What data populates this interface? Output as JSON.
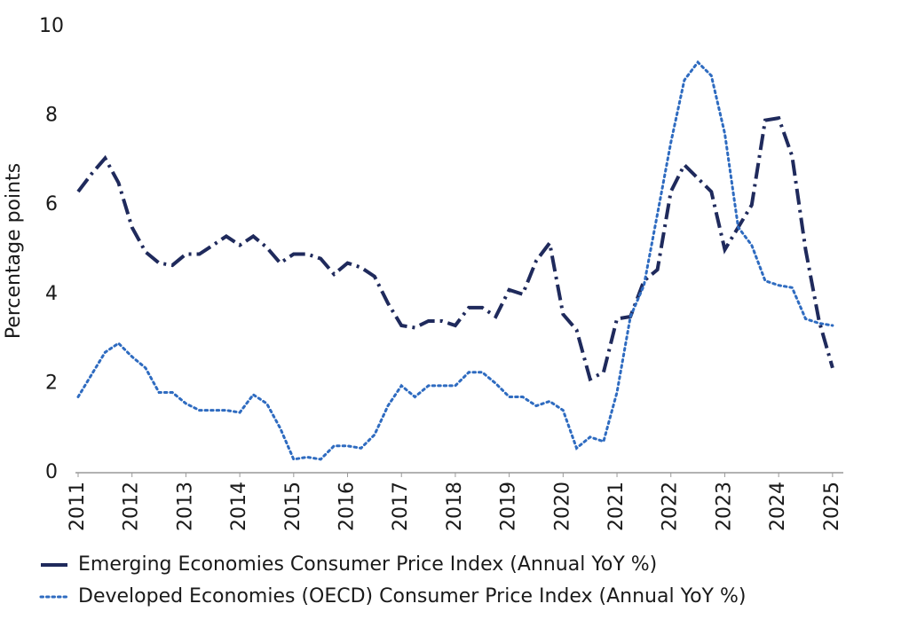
{
  "chart_data": {
    "type": "line",
    "y_label": "Percentage points",
    "x": [
      2011,
      2011.25,
      2011.5,
      2011.75,
      2012,
      2012.25,
      2012.5,
      2012.75,
      2013,
      2013.25,
      2013.5,
      2013.75,
      2014,
      2014.25,
      2014.5,
      2014.75,
      2015,
      2015.25,
      2015.5,
      2015.75,
      2016,
      2016.25,
      2016.5,
      2016.75,
      2017,
      2017.25,
      2017.5,
      2017.75,
      2018,
      2018.25,
      2018.5,
      2018.75,
      2019,
      2019.25,
      2019.5,
      2019.75,
      2020,
      2020.25,
      2020.5,
      2020.75,
      2021,
      2021.25,
      2021.5,
      2021.75,
      2022,
      2022.25,
      2022.5,
      2022.75,
      2023,
      2023.25,
      2023.5,
      2023.75,
      2024,
      2024.25,
      2024.5,
      2024.75,
      2025
    ],
    "series": [
      {
        "name": "Emerging Economies Consumer Price Index (Annual YoY %)",
        "color": "#1f2a5c",
        "style": "dashdot",
        "values": [
          6.3,
          6.7,
          7.05,
          6.5,
          5.5,
          4.95,
          4.7,
          4.65,
          4.9,
          4.9,
          5.1,
          5.3,
          5.1,
          5.3,
          5.05,
          4.7,
          4.9,
          4.9,
          4.8,
          4.45,
          4.7,
          4.6,
          4.4,
          3.8,
          3.3,
          3.25,
          3.4,
          3.4,
          3.3,
          3.7,
          3.7,
          3.5,
          4.1,
          4.0,
          4.75,
          5.15,
          3.55,
          3.2,
          2.1,
          2.25,
          3.45,
          3.5,
          4.3,
          4.55,
          6.3,
          6.9,
          6.6,
          6.3,
          5.0,
          5.5,
          6.0,
          7.9,
          7.95,
          7.1,
          5.0,
          3.4,
          2.35
        ]
      },
      {
        "name": "Developed Economies (OECD) Consumer Price Index (Annual YoY %)",
        "color": "#2e6bc0",
        "style": "dotted",
        "values": [
          1.7,
          2.2,
          2.7,
          2.9,
          2.6,
          2.35,
          1.8,
          1.8,
          1.55,
          1.4,
          1.4,
          1.4,
          1.35,
          1.75,
          1.55,
          1.0,
          0.3,
          0.35,
          0.3,
          0.6,
          0.6,
          0.55,
          0.85,
          1.5,
          1.95,
          1.7,
          1.95,
          1.95,
          1.95,
          2.25,
          2.25,
          2.0,
          1.7,
          1.7,
          1.5,
          1.6,
          1.4,
          0.55,
          0.8,
          0.7,
          1.8,
          3.5,
          4.2,
          5.8,
          7.4,
          8.8,
          9.2,
          8.9,
          7.6,
          5.5,
          5.1,
          4.3,
          4.2,
          4.15,
          3.45,
          3.35,
          3.3
        ]
      }
    ],
    "xlim": [
      2011,
      2025.2
    ],
    "xticks": [
      2011,
      2012,
      2013,
      2014,
      2015,
      2016,
      2017,
      2018,
      2019,
      2020,
      2021,
      2022,
      2023,
      2024,
      2025
    ],
    "ylim": [
      0,
      10
    ],
    "yticks": [
      0,
      2,
      4,
      6,
      8,
      10
    ],
    "grid": false,
    "legend": "bottom"
  }
}
